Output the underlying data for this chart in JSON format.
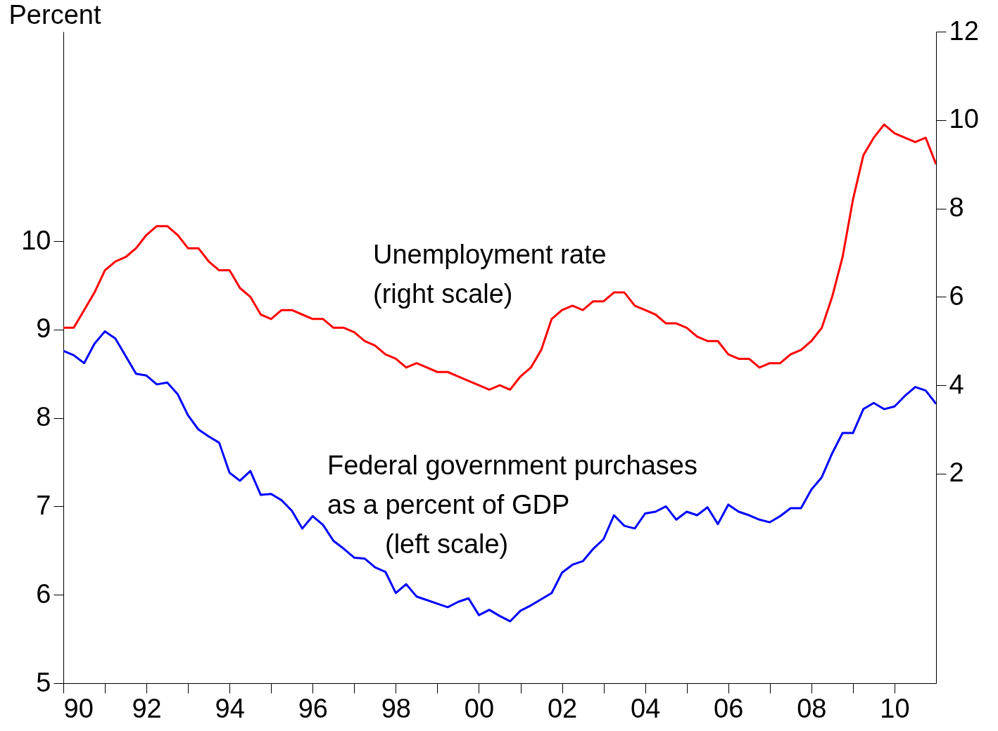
{
  "chart_data": {
    "type": "line",
    "ylabel": "Percent",
    "x": [
      1990,
      1990.25,
      1990.5,
      1990.75,
      1991,
      1991.25,
      1991.5,
      1991.75,
      1992,
      1992.25,
      1992.5,
      1992.75,
      1993,
      1993.25,
      1993.5,
      1993.75,
      1994,
      1994.25,
      1994.5,
      1994.75,
      1995,
      1995.25,
      1995.5,
      1995.75,
      1996,
      1996.25,
      1996.5,
      1996.75,
      1997,
      1997.25,
      1997.5,
      1997.75,
      1998,
      1998.25,
      1998.5,
      1998.75,
      1999,
      1999.25,
      1999.5,
      1999.75,
      2000,
      2000.25,
      2000.5,
      2000.75,
      2001,
      2001.25,
      2001.5,
      2001.75,
      2002,
      2002.25,
      2002.5,
      2002.75,
      2003,
      2003.25,
      2003.5,
      2003.75,
      2004,
      2004.25,
      2004.5,
      2004.75,
      2005,
      2005.25,
      2005.5,
      2005.75,
      2006,
      2006.25,
      2006.5,
      2006.75,
      2007,
      2007.25,
      2007.5,
      2007.75,
      2008,
      2008.25,
      2008.5,
      2008.75,
      2009,
      2009.25,
      2009.5,
      2009.75,
      2010,
      2010.25,
      2010.5,
      2010.75,
      2011
    ],
    "series": [
      {
        "name": "Unemployment rate\n(right scale)",
        "color": "#ff0000",
        "axis": "y2",
        "values": [
          5.3,
          5.3,
          5.7,
          6.1,
          6.6,
          6.8,
          6.9,
          7.1,
          7.4,
          7.6,
          7.6,
          7.4,
          7.1,
          7.1,
          6.8,
          6.6,
          6.6,
          6.2,
          6.0,
          5.6,
          5.5,
          5.7,
          5.7,
          5.6,
          5.5,
          5.5,
          5.3,
          5.3,
          5.2,
          5.0,
          4.9,
          4.7,
          4.6,
          4.4,
          4.5,
          4.4,
          4.3,
          4.3,
          4.2,
          4.1,
          4.0,
          3.9,
          4.0,
          3.9,
          4.2,
          4.4,
          4.8,
          5.5,
          5.7,
          5.8,
          5.7,
          5.9,
          5.9,
          6.1,
          6.1,
          5.8,
          5.7,
          5.6,
          5.4,
          5.4,
          5.3,
          5.1,
          5.0,
          5.0,
          4.7,
          4.6,
          4.6,
          4.4,
          4.5,
          4.5,
          4.7,
          4.8,
          5.0,
          5.3,
          6.0,
          6.9,
          8.2,
          9.2,
          9.6,
          9.9,
          9.7,
          9.6,
          9.5,
          9.6,
          9.0
        ]
      },
      {
        "name": "Federal government purchases\nas a percent of GDP\n(left scale)",
        "color": "#0000ff",
        "axis": "y",
        "values": [
          8.76,
          8.71,
          8.62,
          8.84,
          8.98,
          8.9,
          8.7,
          8.5,
          8.48,
          8.38,
          8.4,
          8.27,
          8.03,
          7.87,
          7.79,
          7.72,
          7.38,
          7.29,
          7.4,
          7.13,
          7.14,
          7.07,
          6.95,
          6.75,
          6.89,
          6.79,
          6.61,
          6.52,
          6.42,
          6.41,
          6.31,
          6.26,
          6.02,
          6.12,
          5.98,
          5.94,
          5.9,
          5.86,
          5.92,
          5.96,
          5.77,
          5.83,
          5.76,
          5.7,
          5.82,
          5.88,
          5.95,
          6.02,
          6.25,
          6.34,
          6.38,
          6.52,
          6.63,
          6.9,
          6.78,
          6.75,
          6.92,
          6.94,
          7.0,
          6.85,
          6.94,
          6.9,
          6.99,
          6.8,
          7.02,
          6.94,
          6.9,
          6.85,
          6.82,
          6.89,
          6.98,
          6.98,
          7.19,
          7.33,
          7.6,
          7.83,
          7.83,
          8.1,
          8.17,
          8.1,
          8.13,
          8.25,
          8.35,
          8.31,
          8.16
        ]
      }
    ],
    "xlim": [
      1990,
      2011
    ],
    "xticks": [
      {
        "value": 1990,
        "label": "90"
      },
      {
        "value": 1991,
        "label": null
      },
      {
        "value": 1992,
        "label": "92"
      },
      {
        "value": 1993,
        "label": null
      },
      {
        "value": 1994,
        "label": "94"
      },
      {
        "value": 1995,
        "label": null
      },
      {
        "value": 1996,
        "label": "96"
      },
      {
        "value": 1997,
        "label": null
      },
      {
        "value": 1998,
        "label": "98"
      },
      {
        "value": 1999,
        "label": null
      },
      {
        "value": 2000,
        "label": "00"
      },
      {
        "value": 2001,
        "label": null
      },
      {
        "value": 2002,
        "label": "02"
      },
      {
        "value": 2003,
        "label": null
      },
      {
        "value": 2004,
        "label": "04"
      },
      {
        "value": 2005,
        "label": null
      },
      {
        "value": 2006,
        "label": "06"
      },
      {
        "value": 2007,
        "label": null
      },
      {
        "value": 2008,
        "label": "08"
      },
      {
        "value": 2009,
        "label": null
      },
      {
        "value": 2010,
        "label": "10"
      }
    ],
    "ylim": [
      5,
      12.37
    ],
    "yticks": [
      5,
      6,
      7,
      8,
      9,
      10
    ],
    "y2lim": [
      -2.74,
      12
    ],
    "y2ticks": [
      2,
      4,
      6,
      8,
      10,
      12
    ],
    "grid": false
  }
}
